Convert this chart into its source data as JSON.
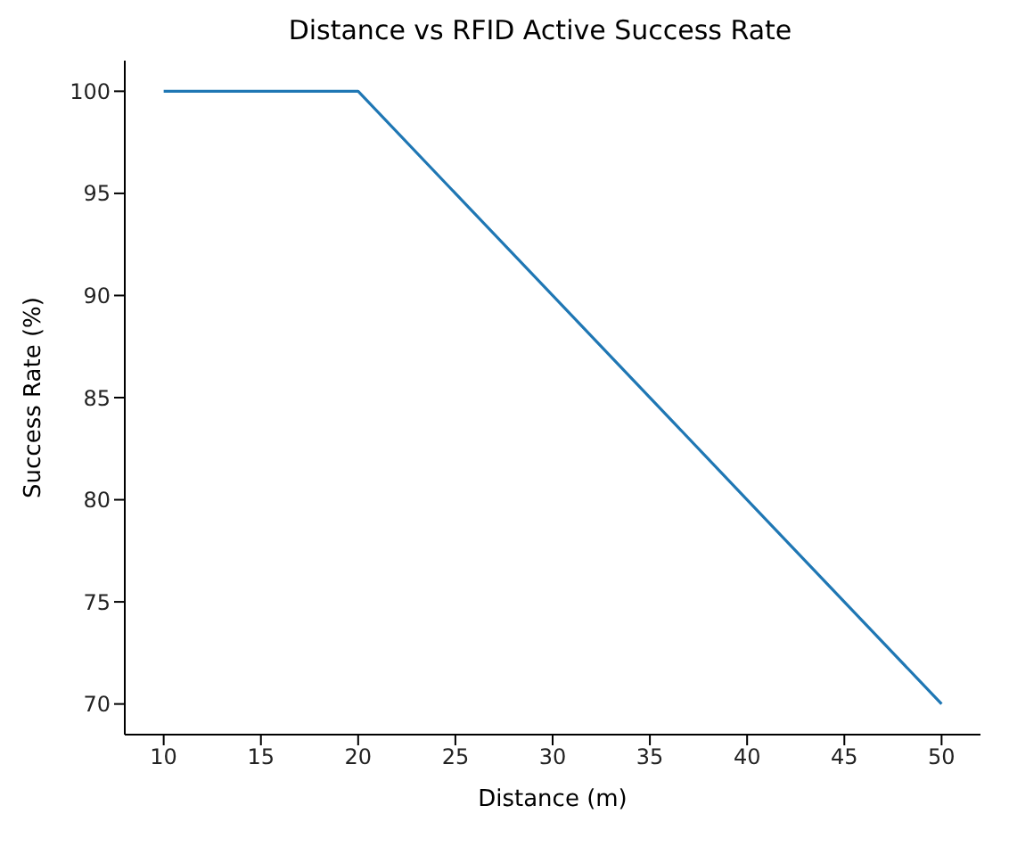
{
  "chart_data": {
    "type": "line",
    "title": "Distance vs RFID Active Success Rate",
    "xlabel": "Distance (m)",
    "ylabel": "Success Rate (%)",
    "x": [
      10,
      20,
      30,
      40,
      50
    ],
    "series": [
      {
        "color": "#1f77b4",
        "values": [
          100,
          100,
          90,
          80,
          70
        ]
      }
    ],
    "xlim": [
      8,
      52
    ],
    "xticks": [
      10,
      15,
      20,
      25,
      30,
      35,
      40,
      45,
      50
    ],
    "ylim": [
      68.5,
      101.5
    ],
    "yticks": [
      70,
      75,
      80,
      85,
      90,
      95,
      100
    ],
    "grid": false,
    "legend": false,
    "marker": "none",
    "line_style": "solid"
  }
}
